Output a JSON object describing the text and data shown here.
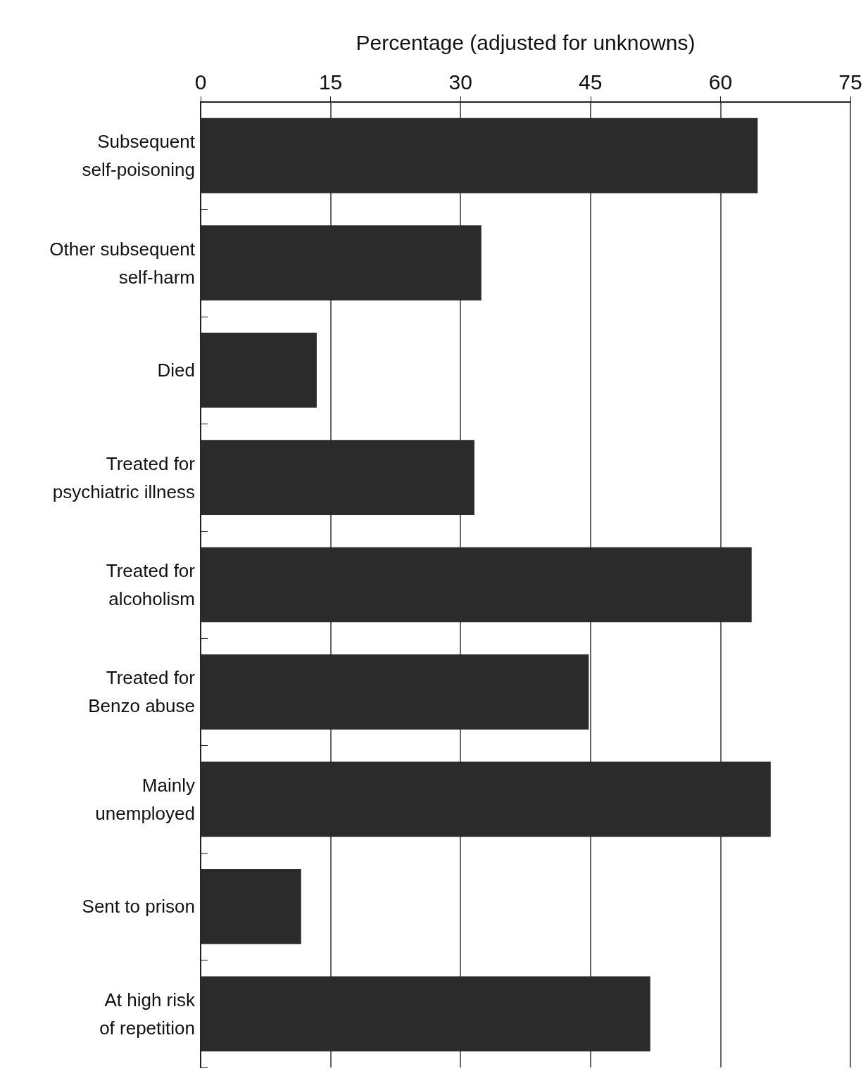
{
  "chart_data": {
    "type": "bar",
    "orientation": "horizontal",
    "xlabel": "Percentage (adjusted for unknowns)",
    "categories": [
      "Subsequent self-poisoning",
      "Other subsequent self-harm",
      "Died",
      "Treated for psychiatric illness",
      "Treated for alcoholism",
      "Treated for Benzo abuse",
      "Mainly unemployed",
      "Sent to prison",
      "At high risk of repetition"
    ],
    "values": [
      64.3,
      32.4,
      13.4,
      31.6,
      63.6,
      44.8,
      65.8,
      11.6,
      51.9
    ],
    "color": "#2b2b2b",
    "xlim": [
      0,
      75
    ],
    "xticks": [
      0,
      15,
      30,
      45,
      60,
      75
    ],
    "grid": "x"
  }
}
